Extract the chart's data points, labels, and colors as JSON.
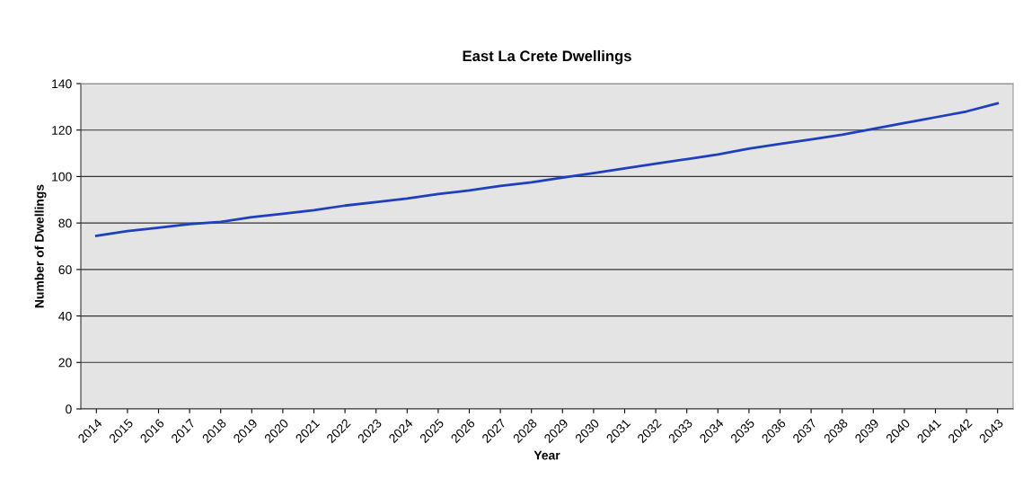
{
  "chart_data": {
    "type": "line",
    "title": "East La Crete Dwellings",
    "xlabel": "Year",
    "ylabel": "Number of Dwellings",
    "categories": [
      "2014",
      "2015",
      "2016",
      "2017",
      "2018",
      "2019",
      "2020",
      "2021",
      "2022",
      "2023",
      "2024",
      "2025",
      "2026",
      "2027",
      "2028",
      "2029",
      "2030",
      "2031",
      "2032",
      "2033",
      "2034",
      "2035",
      "2036",
      "2037",
      "2038",
      "2039",
      "2040",
      "2041",
      "2042",
      "2043"
    ],
    "series": [
      {
        "color": "#1f3fbf",
        "values": [
          74.5,
          76.5,
          78,
          79.5,
          80.5,
          82.5,
          84,
          85.5,
          87.5,
          89,
          90.5,
          92.5,
          94,
          96,
          97.5,
          99.5,
          101.5,
          103.5,
          105.5,
          107.5,
          109.5,
          112,
          114,
          116,
          118,
          120.5,
          123,
          125.5,
          128,
          131.5
        ]
      }
    ],
    "ylim": [
      0,
      140
    ],
    "yticks": [
      0,
      20,
      40,
      60,
      80,
      100,
      120,
      140
    ],
    "grid": "y",
    "marker": "none",
    "line_style": "solid",
    "legend": false
  }
}
